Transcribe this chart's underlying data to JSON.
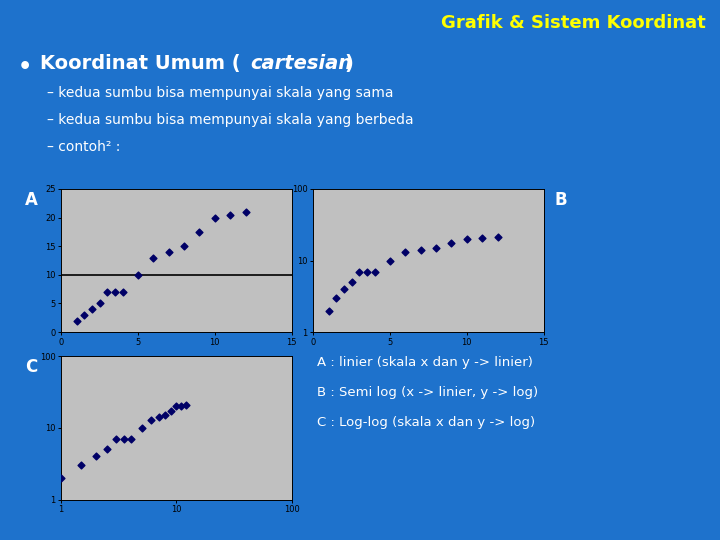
{
  "bg_color": "#1e72cc",
  "title": "Grafik & Sistem Koordinat",
  "title_color": "#ffff00",
  "bullet_color": "#ffffff",
  "plot_bg": "#c0c0c0",
  "dot_color": "#000066",
  "sub_bullets": [
    "– kedua sumbu bisa mempunyai skala yang sama",
    "– kedua sumbu bisa mempunyai skala yang berbeda",
    "– contoh² :"
  ],
  "desc_lines": [
    "A : linier (skala x dan y -> linier)",
    "B : Semi log (x -> linier, y -> log)",
    "C : Log-log (skala x dan y -> log)"
  ],
  "x_data": [
    1,
    1.5,
    2,
    2.5,
    3,
    3.5,
    4,
    5,
    6,
    7,
    8,
    9,
    10,
    11,
    12
  ],
  "y_data": [
    2,
    3,
    4,
    5,
    7,
    7,
    7,
    10,
    13,
    14,
    15,
    17.5,
    20,
    20.5,
    21
  ],
  "title_fontsize": 13,
  "bullet_fontsize": 14,
  "sub_fontsize": 10,
  "label_fontsize": 12,
  "desc_fontsize": 9.5
}
